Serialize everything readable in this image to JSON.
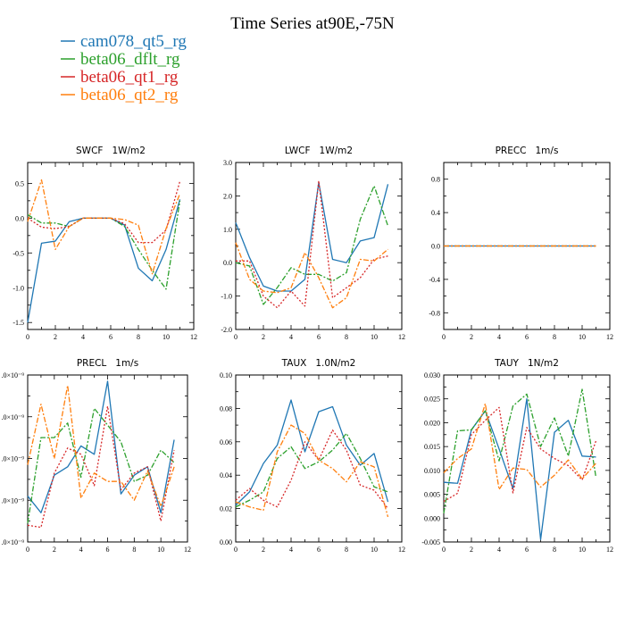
{
  "figure": {
    "title": "Time Series at90E,-75N"
  },
  "colors": {
    "cam078_qt5_rg": "#1f77b4",
    "beta06_dflt_rg": "#2ca02c",
    "beta06_qt1_rg": "#d62728",
    "beta06_qt2_rg": "#ff7f0e"
  },
  "legend": {
    "placement": "top-left",
    "entries": [
      "cam078_qt5_rg",
      "beta06_dflt_rg",
      "beta06_qt1_rg",
      "beta06_qt2_rg"
    ]
  },
  "chart_data": [
    {
      "type": "line",
      "title": "SWCF   1W/m2",
      "x": [
        0,
        1,
        2,
        3,
        4,
        5,
        6,
        7,
        8,
        9,
        10,
        11
      ],
      "xlim": [
        0,
        12
      ],
      "ylim": [
        -1.6,
        0.8
      ],
      "xticks": [
        0,
        2,
        4,
        6,
        8,
        10,
        12
      ],
      "xtick_labels": [
        "0",
        "2",
        "4",
        "6",
        "8",
        "10",
        "12"
      ],
      "yticks": [
        -1.5,
        -1.0,
        -0.5,
        0.0,
        0.5
      ],
      "ytick_labels": [
        "-1.5",
        "-1.0",
        "-0.5",
        "0.0",
        "0.5"
      ],
      "series": [
        {
          "name": "cam078_qt5_rg",
          "values": [
            -1.5,
            -0.36,
            -0.33,
            -0.05,
            0.0,
            0.0,
            0.0,
            -0.1,
            -0.72,
            -0.9,
            -0.45,
            0.27
          ]
        },
        {
          "name": "beta06_dflt_rg",
          "values": [
            0.05,
            -0.07,
            -0.07,
            -0.12,
            0.0,
            0.0,
            0.0,
            -0.12,
            -0.45,
            -0.75,
            -1.02,
            0.25
          ]
        },
        {
          "name": "beta06_qt1_rg",
          "values": [
            0.0,
            -0.13,
            -0.15,
            -0.12,
            0.0,
            0.0,
            0.0,
            -0.08,
            -0.35,
            -0.35,
            -0.17,
            0.53
          ]
        },
        {
          "name": "beta06_qt2_rg",
          "values": [
            -0.05,
            0.55,
            -0.45,
            -0.12,
            0.0,
            0.0,
            0.0,
            -0.02,
            -0.1,
            -0.8,
            -0.15,
            0.35
          ]
        }
      ]
    },
    {
      "type": "line",
      "title": "LWCF   1W/m2",
      "x": [
        0,
        1,
        2,
        3,
        4,
        5,
        6,
        7,
        8,
        9,
        10,
        11
      ],
      "xlim": [
        0,
        12
      ],
      "ylim": [
        -2.0,
        3.0
      ],
      "xticks": [
        0,
        2,
        4,
        6,
        8,
        10,
        12
      ],
      "xtick_labels": [
        "0",
        "2",
        "4",
        "6",
        "8",
        "10",
        "12"
      ],
      "yticks": [
        -2.0,
        -1.0,
        0.0,
        1.0,
        2.0,
        3.0
      ],
      "ytick_labels": [
        "-2.0",
        "-1.0",
        "0.0",
        "1.0",
        "2.0",
        "3.0"
      ],
      "series": [
        {
          "name": "cam078_qt5_rg",
          "values": [
            1.2,
            0.15,
            -0.7,
            -0.85,
            -0.85,
            -0.5,
            2.4,
            0.1,
            0.0,
            0.65,
            0.75,
            2.35
          ]
        },
        {
          "name": "beta06_dflt_rg",
          "values": [
            0.0,
            -0.1,
            -1.25,
            -0.75,
            -0.15,
            -0.35,
            -0.35,
            -0.55,
            -0.3,
            1.3,
            2.3,
            1.1
          ]
        },
        {
          "name": "beta06_qt1_rg",
          "values": [
            0.05,
            0.05,
            -1.0,
            -1.35,
            -0.85,
            -1.3,
            2.45,
            -1.05,
            -0.75,
            -0.45,
            0.1,
            0.2
          ]
        },
        {
          "name": "beta06_qt2_rg",
          "values": [
            0.6,
            -0.5,
            -0.85,
            -0.9,
            -0.75,
            0.3,
            -0.45,
            -1.35,
            -1.05,
            0.1,
            0.05,
            0.4
          ]
        }
      ]
    },
    {
      "type": "line",
      "title": "PRECC   1m/s",
      "x": [
        0,
        1,
        2,
        3,
        4,
        5,
        6,
        7,
        8,
        9,
        10,
        11
      ],
      "xlim": [
        0,
        12
      ],
      "ylim": [
        -1.0,
        1.0
      ],
      "xticks": [
        0,
        2,
        4,
        6,
        8,
        10,
        12
      ],
      "xtick_labels": [
        "0",
        "2",
        "4",
        "6",
        "8",
        "10",
        "12"
      ],
      "yticks": [
        -0.8,
        -0.4,
        0.0,
        0.4,
        0.8
      ],
      "ytick_labels": [
        "-0.8",
        "-0.4",
        "0.0",
        "0.4",
        "0.8"
      ],
      "series": [
        {
          "name": "cam078_qt5_rg",
          "values": [
            0,
            0,
            0,
            0,
            0,
            0,
            0,
            0,
            0,
            0,
            0,
            0
          ]
        },
        {
          "name": "beta06_dflt_rg",
          "values": [
            0,
            0,
            0,
            0,
            0,
            0,
            0,
            0,
            0,
            0,
            0,
            0
          ]
        },
        {
          "name": "beta06_qt1_rg",
          "values": [
            0,
            0,
            0,
            0,
            0,
            0,
            0,
            0,
            0,
            0,
            0,
            0
          ]
        },
        {
          "name": "beta06_qt2_rg",
          "values": [
            0,
            0,
            0,
            0,
            0,
            0,
            0,
            0,
            0,
            0,
            0,
            0
          ]
        }
      ]
    },
    {
      "type": "line",
      "title": "PRECL   1m/s",
      "x": [
        0,
        1,
        2,
        3,
        4,
        5,
        6,
        7,
        8,
        9,
        10,
        11
      ],
      "xlim": [
        0,
        12
      ],
      "ylim": [
        0,
        4.0
      ],
      "ylim_note": "tick labels clipped on left edge",
      "xticks": [
        0,
        2,
        4,
        6,
        8,
        10,
        12
      ],
      "xtick_labels": [
        "0",
        "2",
        "4",
        "6",
        "8",
        "10",
        "12"
      ],
      "yticks": [
        0.0,
        1.0,
        2.0,
        3.0,
        4.0
      ],
      "ytick_labels": [
        ".0×10⁻⁹",
        ".0×10⁻⁹",
        ".0×10⁻⁹",
        ".0×10⁻⁹",
        ".0×10⁻⁹"
      ],
      "series": [
        {
          "name": "cam078_qt5_rg",
          "values": [
            1.1,
            0.7,
            1.6,
            1.8,
            2.3,
            2.1,
            3.85,
            1.15,
            1.6,
            1.8,
            0.7,
            2.45
          ]
        },
        {
          "name": "beta06_dflt_rg",
          "values": [
            0.45,
            2.5,
            2.5,
            2.85,
            1.55,
            3.2,
            2.8,
            2.4,
            1.45,
            1.6,
            2.2,
            1.9
          ]
        },
        {
          "name": "beta06_qt1_rg",
          "values": [
            0.4,
            0.35,
            1.65,
            2.25,
            2.1,
            1.35,
            3.25,
            1.25,
            1.65,
            1.8,
            0.5,
            2.2
          ]
        },
        {
          "name": "beta06_qt2_rg",
          "values": [
            1.85,
            3.3,
            2.0,
            3.75,
            1.05,
            1.65,
            1.45,
            1.45,
            1.0,
            1.7,
            0.85,
            1.8
          ]
        }
      ]
    },
    {
      "type": "line",
      "title": "TAUX   1.0N/m2",
      "x": [
        0,
        1,
        2,
        3,
        4,
        5,
        6,
        7,
        8,
        9,
        10,
        11
      ],
      "xlim": [
        0,
        12
      ],
      "ylim": [
        0.0,
        0.1
      ],
      "xticks": [
        0,
        2,
        4,
        6,
        8,
        10,
        12
      ],
      "xtick_labels": [
        "0",
        "2",
        "4",
        "6",
        "8",
        "10",
        "12"
      ],
      "yticks": [
        0.0,
        0.02,
        0.04,
        0.06,
        0.08,
        0.1
      ],
      "ytick_labels": [
        "0.00",
        "0.02",
        "0.04",
        "0.06",
        "0.08",
        "0.10"
      ],
      "series": [
        {
          "name": "cam078_qt5_rg",
          "values": [
            0.022,
            0.03,
            0.047,
            0.058,
            0.085,
            0.054,
            0.078,
            0.081,
            0.058,
            0.046,
            0.053,
            0.024
          ]
        },
        {
          "name": "beta06_dflt_rg",
          "values": [
            0.021,
            0.025,
            0.03,
            0.05,
            0.057,
            0.044,
            0.048,
            0.055,
            0.065,
            0.05,
            0.033,
            0.03
          ]
        },
        {
          "name": "beta06_qt1_rg",
          "values": [
            0.025,
            0.032,
            0.025,
            0.021,
            0.037,
            0.06,
            0.049,
            0.067,
            0.055,
            0.034,
            0.031,
            0.02
          ]
        },
        {
          "name": "beta06_qt2_rg",
          "values": [
            0.024,
            0.021,
            0.019,
            0.054,
            0.07,
            0.065,
            0.049,
            0.044,
            0.036,
            0.048,
            0.045,
            0.015
          ]
        }
      ]
    },
    {
      "type": "line",
      "title": "TAUY   1N/m2",
      "x": [
        0,
        1,
        2,
        3,
        4,
        5,
        6,
        7,
        8,
        9,
        10,
        11
      ],
      "xlim": [
        0,
        12
      ],
      "ylim": [
        -0.005,
        0.03
      ],
      "xticks": [
        0,
        2,
        4,
        6,
        8,
        10,
        12
      ],
      "xtick_labels": [
        "0",
        "2",
        "4",
        "6",
        "8",
        "10",
        "12"
      ],
      "yticks": [
        -0.005,
        0.0,
        0.005,
        0.01,
        0.015,
        0.02,
        0.025,
        0.03
      ],
      "ytick_labels": [
        "-0.005",
        "0.000",
        "0.005",
        "0.010",
        "0.015",
        "0.020",
        "0.025",
        "0.030"
      ],
      "series": [
        {
          "name": "cam078_qt5_rg",
          "values": [
            0.0075,
            0.0073,
            0.0185,
            0.0225,
            0.0145,
            0.0062,
            0.025,
            -0.0045,
            0.018,
            0.0205,
            0.013,
            0.0128
          ]
        },
        {
          "name": "beta06_dflt_rg",
          "values": [
            0.001,
            0.0183,
            0.0185,
            0.0225,
            0.012,
            0.0235,
            0.026,
            0.015,
            0.021,
            0.013,
            0.027,
            0.0085
          ]
        },
        {
          "name": "beta06_qt1_rg",
          "values": [
            0.0035,
            0.0052,
            0.0175,
            0.0205,
            0.0232,
            0.0053,
            0.019,
            0.0145,
            0.0125,
            0.011,
            0.008,
            0.0162
          ]
        },
        {
          "name": "beta06_qt2_rg",
          "values": [
            0.0095,
            0.0125,
            0.0145,
            0.024,
            0.006,
            0.0105,
            0.0102,
            0.0065,
            0.009,
            0.0122,
            0.0082,
            0.0115
          ]
        }
      ]
    }
  ]
}
